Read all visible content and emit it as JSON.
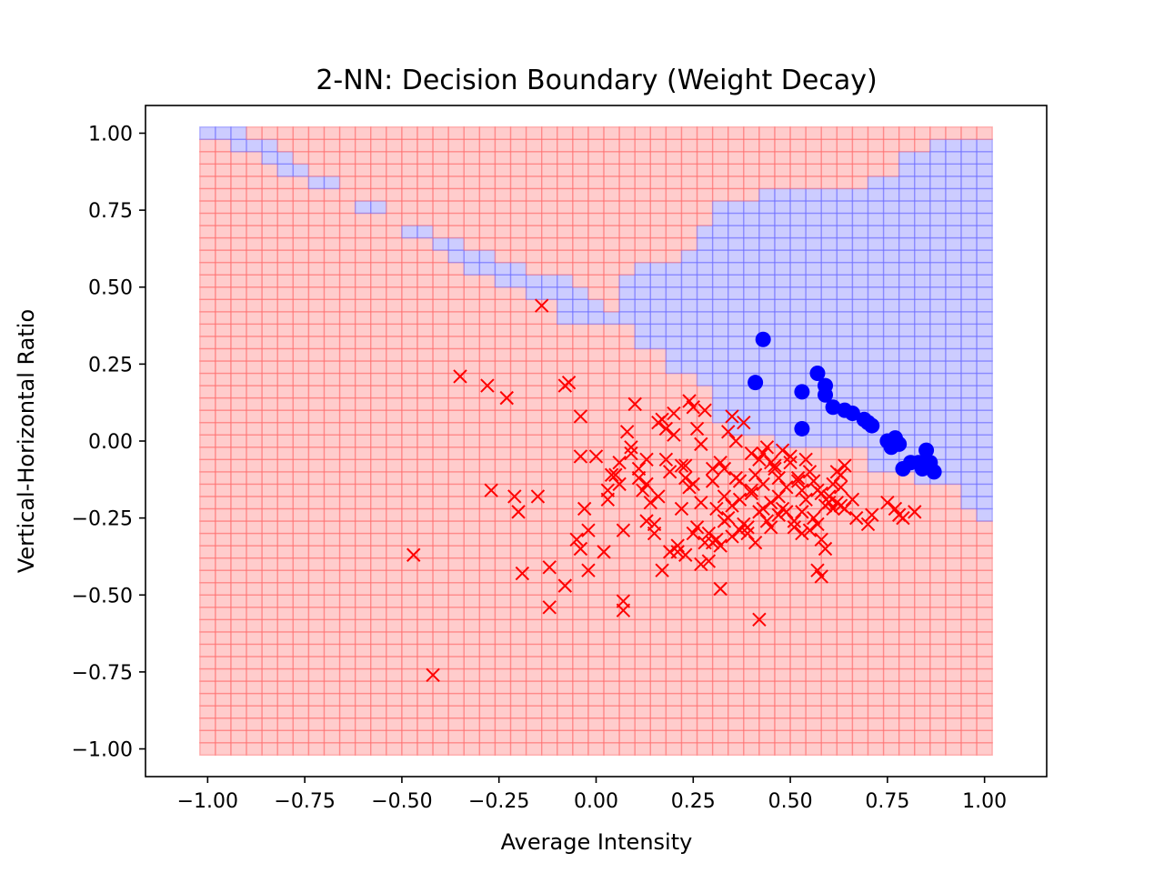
{
  "chart_data": {
    "type": "scatter",
    "title": "2-NN: Decision Boundary (Weight Decay)",
    "xlabel": "Average Intensity",
    "ylabel": "Vertical-Horizontal Ratio",
    "xlim": [
      -1.16,
      1.16
    ],
    "ylim": [
      -1.09,
      1.09
    ],
    "xticks": [
      -1.0,
      -0.75,
      -0.5,
      -0.25,
      0.0,
      0.25,
      0.5,
      0.75,
      1.0
    ],
    "xtick_labels": [
      "−1.00",
      "−0.75",
      "−0.50",
      "−0.25",
      "0.00",
      "0.25",
      "0.50",
      "0.75",
      "1.00"
    ],
    "yticks": [
      1.0,
      0.75,
      0.5,
      0.25,
      0.0,
      -0.25,
      -0.5,
      -0.75,
      -1.0
    ],
    "ytick_labels": [
      "1.00",
      "0.75",
      "0.50",
      "0.25",
      "0.00",
      "−0.25",
      "−0.50",
      "−0.75",
      "−1.00"
    ],
    "grid": false,
    "colors": {
      "positive": "#0000ff",
      "negative": "#ff0000",
      "region_positive": "#aaaaff",
      "region_negative": "#ffaaaa"
    },
    "decision_region": {
      "x_range": [
        -1.02,
        1.02
      ],
      "y_range": [
        -1.02,
        1.02
      ],
      "cells": 51,
      "positive_cells": [
        [
          -0.98,
          1.0
        ],
        [
          -0.94,
          1.0
        ],
        [
          -0.9,
          0.96
        ],
        [
          -0.86,
          0.96
        ],
        [
          -0.82,
          0.92
        ],
        [
          -0.78,
          0.88
        ],
        [
          -0.7,
          0.84
        ],
        [
          -0.58,
          0.76
        ],
        [
          -0.46,
          0.68
        ],
        [
          -0.38,
          0.64
        ],
        [
          -0.34,
          0.6
        ],
        [
          -0.3,
          0.6
        ],
        [
          -0.3,
          0.56
        ],
        [
          -0.26,
          0.56
        ],
        [
          -0.22,
          0.56
        ],
        [
          -0.22,
          0.52
        ],
        [
          -0.18,
          0.52
        ],
        [
          -0.14,
          0.52
        ],
        [
          -0.1,
          0.52
        ],
        [
          -0.14,
          0.48
        ],
        [
          -0.1,
          0.48
        ],
        [
          -0.06,
          0.48
        ],
        [
          -0.06,
          0.44
        ],
        [
          -0.02,
          0.44
        ],
        [
          -0.06,
          0.4
        ],
        [
          -0.02,
          0.4
        ],
        [
          0.02,
          0.4
        ],
        [
          0.06,
          0.4
        ]
      ],
      "boundary_x": [
        0.1,
        0.14,
        0.18,
        0.22,
        0.26,
        0.3,
        0.34,
        0.38,
        0.42,
        0.46,
        0.5,
        0.54,
        0.58,
        0.62,
        0.66,
        0.7,
        0.74,
        0.78,
        0.82,
        0.86,
        0.9,
        0.94,
        0.98,
        1.02
      ],
      "boundary_lower": [
        0.4,
        0.32,
        0.24,
        0.2,
        0.16,
        0.12,
        0.08,
        0.04,
        0.04,
        0.0,
        0.0,
        -0.04,
        -0.04,
        -0.04,
        -0.04,
        -0.08,
        -0.08,
        -0.08,
        -0.12,
        -0.12,
        -0.16,
        -0.2,
        -0.24,
        -0.26
      ],
      "boundary_upper": [
        0.52,
        0.56,
        0.6,
        0.64,
        0.68,
        0.72,
        0.76,
        0.76,
        0.8,
        0.8,
        0.8,
        0.8,
        0.84,
        0.84,
        0.84,
        0.88,
        0.88,
        0.92,
        0.92,
        0.92,
        0.96,
        0.96,
        0.96,
        0.96
      ]
    },
    "series": [
      {
        "marker": "circle",
        "color": "#0000ff",
        "x": [
          0.43,
          0.41,
          0.53,
          0.53,
          0.57,
          0.59,
          0.59,
          0.61,
          0.64,
          0.66,
          0.69,
          0.7,
          0.71,
          0.75,
          0.76,
          0.77,
          0.77,
          0.78,
          0.79,
          0.81,
          0.83,
          0.84,
          0.85,
          0.85,
          0.86,
          0.87
        ],
        "y": [
          0.33,
          0.19,
          0.16,
          0.04,
          0.22,
          0.18,
          0.15,
          0.11,
          0.1,
          0.09,
          0.07,
          0.06,
          0.05,
          0.0,
          -0.02,
          0.01,
          -0.01,
          -0.01,
          -0.09,
          -0.07,
          -0.07,
          -0.09,
          -0.03,
          -0.08,
          -0.07,
          -0.1
        ]
      },
      {
        "marker": "x",
        "color": "#ff0000",
        "x": [
          -0.14,
          -0.35,
          -0.28,
          -0.23,
          -0.08,
          -0.07,
          -0.04,
          -0.47,
          -0.42,
          -0.27,
          -0.21,
          -0.19,
          -0.15,
          -0.12,
          -0.12,
          -0.2,
          -0.04,
          -0.05,
          -0.04,
          -0.03,
          -0.02,
          0.0,
          0.02,
          0.03,
          0.05,
          0.06,
          0.07,
          0.07,
          0.07,
          0.08,
          0.09,
          0.1,
          0.11,
          0.12,
          0.13,
          0.14,
          0.15,
          0.16,
          0.17,
          0.18,
          0.19,
          0.2,
          0.21,
          0.22,
          0.23,
          0.24,
          0.25,
          0.26,
          0.27,
          0.28,
          0.29,
          0.3,
          0.31,
          0.32,
          0.33,
          0.34,
          0.35,
          0.36,
          0.37,
          0.38,
          0.39,
          0.4,
          0.41,
          0.42,
          0.43,
          0.44,
          0.45,
          0.46,
          0.47,
          0.48,
          0.49,
          0.5,
          0.51,
          0.52,
          0.53,
          0.54,
          0.55,
          0.56,
          0.57,
          0.58,
          0.59,
          0.6,
          0.61,
          0.62,
          0.63,
          0.64,
          0.66,
          0.67,
          0.7,
          0.71,
          0.75,
          0.77,
          0.78,
          0.79,
          0.82,
          0.42,
          0.32,
          0.58,
          0.57,
          -0.08,
          -0.02,
          0.04,
          0.06,
          0.09,
          0.11,
          0.13,
          0.16,
          0.18,
          0.2,
          0.22,
          0.24,
          0.26,
          0.28,
          0.3,
          0.32,
          0.34,
          0.36,
          0.38,
          0.4,
          0.42,
          0.44,
          0.46,
          0.48,
          0.5,
          0.52,
          0.54,
          0.56,
          0.58,
          0.6,
          0.62,
          0.64,
          0.15,
          0.19,
          0.23,
          0.27,
          0.31,
          0.35,
          0.39,
          0.43,
          0.47,
          0.51,
          0.55,
          0.59,
          0.63,
          0.21,
          0.25,
          0.29,
          0.33,
          0.37,
          0.41,
          0.45,
          0.49,
          0.53,
          0.57,
          0.61,
          0.17,
          0.27,
          0.37,
          0.47,
          0.03,
          0.13,
          0.23,
          0.33,
          0.43,
          0.53,
          0.63,
          0.25,
          0.35,
          0.45,
          0.3,
          0.4
        ],
        "y": [
          0.44,
          0.21,
          0.18,
          0.14,
          0.18,
          0.19,
          0.08,
          -0.37,
          -0.76,
          -0.16,
          -0.18,
          -0.43,
          -0.18,
          -0.41,
          -0.54,
          -0.23,
          -0.05,
          -0.32,
          -0.35,
          -0.22,
          -0.42,
          -0.05,
          -0.36,
          -0.16,
          -0.11,
          -0.14,
          -0.29,
          -0.52,
          -0.55,
          0.03,
          -0.02,
          0.12,
          -0.12,
          -0.16,
          -0.06,
          -0.2,
          -0.27,
          -0.18,
          -0.42,
          0.04,
          -0.1,
          0.09,
          -0.36,
          -0.22,
          -0.08,
          -0.15,
          -0.14,
          -0.28,
          -0.2,
          -0.33,
          -0.3,
          -0.13,
          -0.22,
          -0.34,
          -0.18,
          -0.25,
          -0.21,
          -0.12,
          -0.19,
          -0.27,
          -0.3,
          -0.17,
          -0.11,
          -0.23,
          -0.14,
          -0.26,
          -0.2,
          -0.09,
          -0.18,
          -0.22,
          -0.15,
          -0.07,
          -0.28,
          -0.13,
          -0.23,
          -0.19,
          -0.1,
          -0.25,
          -0.16,
          -0.32,
          -0.21,
          -0.18,
          -0.14,
          -0.2,
          -0.15,
          -0.22,
          -0.19,
          -0.25,
          -0.27,
          -0.24,
          -0.2,
          -0.22,
          -0.24,
          -0.25,
          -0.23,
          -0.58,
          -0.48,
          -0.44,
          -0.42,
          -0.47,
          -0.29,
          -0.11,
          -0.07,
          -0.04,
          -0.09,
          -0.14,
          0.06,
          -0.06,
          0.02,
          -0.08,
          0.13,
          0.04,
          0.1,
          -0.09,
          -0.07,
          0.03,
          0.0,
          0.06,
          -0.04,
          -0.06,
          -0.02,
          -0.08,
          -0.03,
          -0.05,
          -0.12,
          -0.06,
          -0.13,
          -0.17,
          -0.2,
          -0.1,
          -0.08,
          -0.3,
          -0.36,
          -0.37,
          -0.4,
          -0.32,
          -0.31,
          -0.28,
          -0.22,
          -0.24,
          -0.26,
          -0.29,
          -0.35,
          -0.21,
          -0.34,
          -0.3,
          -0.39,
          -0.26,
          -0.29,
          -0.33,
          -0.28,
          -0.23,
          -0.3,
          -0.27,
          -0.22,
          0.07,
          -0.01,
          -0.13,
          -0.12,
          -0.19,
          -0.26,
          -0.12,
          -0.09,
          -0.04,
          -0.16,
          -0.11,
          0.11,
          0.08,
          -0.07,
          -0.33,
          -0.16
        ]
      }
    ]
  }
}
